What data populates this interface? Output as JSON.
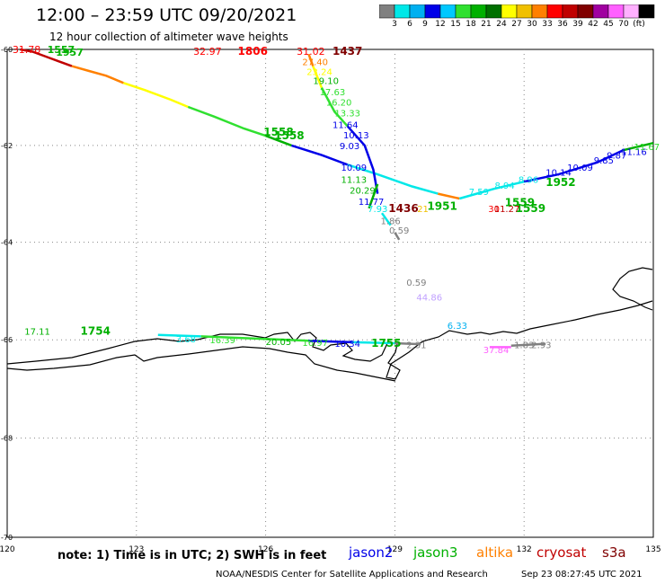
{
  "header": {
    "title": "12:00 – 23:59 UTC 09/20/2021",
    "subtitle": "12 hour collection of altimeter wave heights"
  },
  "colorbar": {
    "colors": [
      "#808080",
      "#00e8e8",
      "#00b0f0",
      "#0000e8",
      "#00c8ff",
      "#30e030",
      "#00b000",
      "#007000",
      "#ffff00",
      "#f0c000",
      "#ff8000",
      "#ff0000",
      "#c00000",
      "#800000",
      "#a000a0",
      "#ff60ff",
      "#ffb0ff",
      "#000000"
    ],
    "labels": [
      "3",
      "6",
      "9",
      "12",
      "15",
      "18",
      "21",
      "24",
      "27",
      "30",
      "33",
      "36",
      "39",
      "42",
      "45",
      "70",
      "(ft)"
    ]
  },
  "axes": {
    "lat_labels": [
      "-60",
      "-62",
      "-64",
      "-66",
      "-68",
      "-70"
    ],
    "lon_labels": [
      "120",
      "123",
      "126",
      "129",
      "132",
      "135"
    ]
  },
  "tracks": [
    {
      "color": "#c00000",
      "points": [
        [
          120.3,
          -60.0
        ],
        [
          120.6,
          -60.05
        ],
        [
          120.9,
          -60.15
        ],
        [
          121.2,
          -60.25
        ],
        [
          121.5,
          -60.35
        ]
      ]
    },
    {
      "color": "#ff8000",
      "points": [
        [
          121.5,
          -60.35
        ],
        [
          121.9,
          -60.45
        ],
        [
          122.3,
          -60.55
        ],
        [
          122.7,
          -60.7
        ]
      ]
    },
    {
      "color": "#ffff00",
      "points": [
        [
          122.7,
          -60.7
        ],
        [
          123.2,
          -60.85
        ],
        [
          123.8,
          -61.05
        ],
        [
          124.2,
          -61.2
        ]
      ]
    },
    {
      "color": "#30e030",
      "points": [
        [
          124.2,
          -61.2
        ],
        [
          124.8,
          -61.4
        ],
        [
          125.5,
          -61.65
        ],
        [
          126.0,
          -61.8
        ]
      ]
    },
    {
      "color": "#00b000",
      "points": [
        [
          126.0,
          -61.8
        ],
        [
          126.6,
          -62.0
        ]
      ]
    },
    {
      "color": "#0000e8",
      "points": [
        [
          126.6,
          -62.0
        ],
        [
          127.3,
          -62.2
        ],
        [
          127.9,
          -62.4
        ]
      ]
    },
    {
      "color": "#00e8e8",
      "points": [
        [
          127.9,
          -62.4
        ],
        [
          128.6,
          -62.6
        ],
        [
          129.4,
          -62.85
        ],
        [
          130.0,
          -63.0
        ]
      ]
    },
    {
      "color": "#ff8000",
      "points": [
        [
          130.0,
          -63.0
        ],
        [
          130.5,
          -63.1
        ]
      ]
    },
    {
      "color": "#00e8e8",
      "points": [
        [
          130.5,
          -63.1
        ],
        [
          131.3,
          -62.9
        ],
        [
          132.0,
          -62.75
        ]
      ]
    },
    {
      "color": "#0000e8",
      "points": [
        [
          132.0,
          -62.75
        ],
        [
          132.8,
          -62.6
        ],
        [
          133.7,
          -62.35
        ],
        [
          134.3,
          -62.1
        ]
      ]
    },
    {
      "color": "#00b000",
      "points": [
        [
          134.3,
          -62.1
        ],
        [
          135.0,
          -61.95
        ]
      ]
    },
    {
      "color": "#ff8000",
      "points": [
        [
          127.0,
          -60.1
        ],
        [
          127.1,
          -60.35
        ]
      ]
    },
    {
      "color": "#ffff00",
      "points": [
        [
          127.1,
          -60.35
        ],
        [
          127.3,
          -60.8
        ]
      ]
    },
    {
      "color": "#30e030",
      "points": [
        [
          127.3,
          -60.8
        ],
        [
          127.6,
          -61.3
        ],
        [
          127.9,
          -61.6
        ]
      ]
    },
    {
      "color": "#0000e8",
      "points": [
        [
          127.9,
          -61.6
        ],
        [
          128.3,
          -62.0
        ],
        [
          128.5,
          -62.5
        ],
        [
          128.6,
          -63.0
        ]
      ]
    },
    {
      "color": "#00b000",
      "points": [
        [
          128.6,
          -62.8
        ],
        [
          128.4,
          -63.3
        ]
      ]
    },
    {
      "color": "#00e8e8",
      "points": [
        [
          128.7,
          -63.4
        ],
        [
          128.9,
          -63.65
        ]
      ]
    },
    {
      "color": "#808080",
      "points": [
        [
          129.0,
          -63.8
        ],
        [
          129.1,
          -63.95
        ]
      ]
    },
    {
      "color": "#00e8e8",
      "points": [
        [
          123.5,
          -65.9
        ],
        [
          124.5,
          -65.93
        ]
      ]
    },
    {
      "color": "#30e030",
      "points": [
        [
          124.5,
          -65.93
        ],
        [
          126.5,
          -66.0
        ],
        [
          127.0,
          -66.02
        ]
      ]
    },
    {
      "color": "#0000e8",
      "points": [
        [
          127.0,
          -66.02
        ],
        [
          128.0,
          -66.05
        ]
      ]
    },
    {
      "color": "#00e8e8",
      "points": [
        [
          128.0,
          -66.05
        ],
        [
          129.0,
          -66.07
        ]
      ]
    },
    {
      "color": "#808080",
      "points": [
        [
          129.0,
          -66.07
        ],
        [
          129.6,
          -66.09
        ]
      ]
    },
    {
      "color": "#ff60ff",
      "points": [
        [
          131.2,
          -66.15
        ],
        [
          131.7,
          -66.15
        ]
      ]
    },
    {
      "color": "#808080",
      "points": [
        [
          131.7,
          -66.12
        ],
        [
          132.5,
          -66.08
        ]
      ]
    }
  ],
  "labels": [
    {
      "text": "31.78",
      "lon": 120.45,
      "lat": -60.0,
      "color": "#ff0000",
      "size": 11
    },
    {
      "text": "1557",
      "lon": 121.25,
      "lat": -60.0,
      "color": "#00b000",
      "size": 11,
      "bold": true
    },
    {
      "text": "1957",
      "lon": 121.45,
      "lat": -60.06,
      "color": "#00b000",
      "size": 11,
      "bold": true
    },
    {
      "text": "32.97",
      "lon": 124.65,
      "lat": -60.04,
      "color": "#ff0000",
      "size": 11
    },
    {
      "text": "1806",
      "lon": 125.7,
      "lat": -60.04,
      "color": "#ff0000",
      "size": 12,
      "bold": true
    },
    {
      "text": "31.02",
      "lon": 127.05,
      "lat": -60.04,
      "color": "#ff0000",
      "size": 11
    },
    {
      "text": "1437",
      "lon": 127.9,
      "lat": -60.04,
      "color": "#800000",
      "size": 12,
      "bold": true
    },
    {
      "text": "27.40",
      "lon": 127.15,
      "lat": -60.25,
      "color": "#ff8000",
      "size": 10
    },
    {
      "text": "23.24",
      "lon": 127.25,
      "lat": -60.46,
      "color": "#ffff00",
      "size": 10
    },
    {
      "text": "19.10",
      "lon": 127.4,
      "lat": -60.65,
      "color": "#00b000",
      "size": 10
    },
    {
      "text": "17.63",
      "lon": 127.55,
      "lat": -60.88,
      "color": "#30e030",
      "size": 10
    },
    {
      "text": "16.20",
      "lon": 127.7,
      "lat": -61.1,
      "color": "#30e030",
      "size": 10
    },
    {
      "text": "13.33",
      "lon": 127.9,
      "lat": -61.32,
      "color": "#30e030",
      "size": 10
    },
    {
      "text": "11.64",
      "lon": 127.85,
      "lat": -61.56,
      "color": "#0000e8",
      "size": 10
    },
    {
      "text": "10.13",
      "lon": 128.1,
      "lat": -61.78,
      "color": "#0000e8",
      "size": 10
    },
    {
      "text": "9.03",
      "lon": 127.95,
      "lat": -62.0,
      "color": "#0000e8",
      "size": 10
    },
    {
      "text": "10.09",
      "lon": 128.05,
      "lat": -62.45,
      "color": "#0000e8",
      "size": 10
    },
    {
      "text": "11.13",
      "lon": 128.05,
      "lat": -62.7,
      "color": "#00b000",
      "size": 10
    },
    {
      "text": "20.29",
      "lon": 128.25,
      "lat": -62.92,
      "color": "#00b000",
      "size": 10
    },
    {
      "text": "11.77",
      "lon": 128.45,
      "lat": -63.16,
      "color": "#0000e8",
      "size": 10
    },
    {
      "text": "7.93",
      "lon": 128.6,
      "lat": -63.3,
      "color": "#00e8e8",
      "size": 10
    },
    {
      "text": "1436",
      "lon": 129.2,
      "lat": -63.3,
      "color": "#800000",
      "size": 12,
      "bold": true
    },
    {
      "text": "21",
      "lon": 129.65,
      "lat": -63.3,
      "color": "#f0c000",
      "size": 10
    },
    {
      "text": "1951",
      "lon": 130.1,
      "lat": -63.26,
      "color": "#00b000",
      "size": 12,
      "bold": true
    },
    {
      "text": "1.86",
      "lon": 128.9,
      "lat": -63.55,
      "color": "#808080",
      "size": 10
    },
    {
      "text": "0.59",
      "lon": 129.1,
      "lat": -63.75,
      "color": "#808080",
      "size": 10
    },
    {
      "text": "1559",
      "lon": 131.9,
      "lat": -63.18,
      "color": "#00b000",
      "size": 12,
      "bold": true
    },
    {
      "text": "1559",
      "lon": 132.15,
      "lat": -63.3,
      "color": "#00b000",
      "size": 12,
      "bold": true
    },
    {
      "text": "30",
      "lon": 131.3,
      "lat": -63.3,
      "color": "#ff0000",
      "size": 10
    },
    {
      "text": "11.27",
      "lon": 131.6,
      "lat": -63.3,
      "color": "#c00000",
      "size": 10
    },
    {
      "text": "7.59",
      "lon": 130.95,
      "lat": -62.95,
      "color": "#00e8e8",
      "size": 10
    },
    {
      "text": "8.94",
      "lon": 131.55,
      "lat": -62.82,
      "color": "#00e8e8",
      "size": 10
    },
    {
      "text": "8.96",
      "lon": 132.1,
      "lat": -62.7,
      "color": "#00e8e8",
      "size": 10
    },
    {
      "text": "10.14",
      "lon": 132.8,
      "lat": -62.55,
      "color": "#0000e8",
      "size": 10
    },
    {
      "text": "1952",
      "lon": 132.85,
      "lat": -62.77,
      "color": "#00b000",
      "size": 12,
      "bold": true
    },
    {
      "text": "10.09",
      "lon": 133.3,
      "lat": -62.45,
      "color": "#0000e8",
      "size": 10
    },
    {
      "text": "9.85",
      "lon": 133.85,
      "lat": -62.3,
      "color": "#0000e8",
      "size": 10
    },
    {
      "text": "9.87",
      "lon": 134.15,
      "lat": -62.2,
      "color": "#0000e8",
      "size": 10
    },
    {
      "text": "11.16",
      "lon": 134.55,
      "lat": -62.12,
      "color": "#0000e8",
      "size": 10
    },
    {
      "text": "11.67",
      "lon": 134.85,
      "lat": -62.02,
      "color": "#30e030",
      "size": 10
    },
    {
      "text": "1558",
      "lon": 126.3,
      "lat": -61.72,
      "color": "#00b000",
      "size": 12,
      "bold": true
    },
    {
      "text": "1558",
      "lon": 126.55,
      "lat": -61.8,
      "color": "#00b000",
      "size": 12,
      "bold": true
    },
    {
      "text": "0.59",
      "lon": 129.5,
      "lat": -64.82,
      "color": "#808080",
      "size": 10
    },
    {
      "text": "44.86",
      "lon": 129.8,
      "lat": -65.12,
      "color": "#c0a0ff",
      "size": 10
    },
    {
      "text": "6.33",
      "lon": 130.45,
      "lat": -65.7,
      "color": "#00b0f0",
      "size": 10
    },
    {
      "text": "17.11",
      "lon": 120.7,
      "lat": -65.82,
      "color": "#00b000",
      "size": 10
    },
    {
      "text": "1754",
      "lon": 122.05,
      "lat": -65.82,
      "color": "#00b000",
      "size": 12,
      "bold": true
    },
    {
      "text": "3.68",
      "lon": 124.15,
      "lat": -65.98,
      "color": "#00e8e8",
      "size": 10
    },
    {
      "text": "16.39",
      "lon": 125.0,
      "lat": -66.0,
      "color": "#30e030",
      "size": 10
    },
    {
      "text": "20.05",
      "lon": 126.3,
      "lat": -66.03,
      "color": "#00b000",
      "size": 10
    },
    {
      "text": "16.97",
      "lon": 127.15,
      "lat": -66.05,
      "color": "#30e030",
      "size": 10
    },
    {
      "text": "10.34",
      "lon": 127.9,
      "lat": -66.07,
      "color": "#0000e8",
      "size": 10
    },
    {
      "text": "1755",
      "lon": 128.8,
      "lat": -66.07,
      "color": "#00b000",
      "size": 12,
      "bold": true
    },
    {
      "text": "2.31",
      "lon": 129.5,
      "lat": -66.1,
      "color": "#808080",
      "size": 10
    },
    {
      "text": "37.84",
      "lon": 131.35,
      "lat": -66.2,
      "color": "#ff60ff",
      "size": 10
    },
    {
      "text": "1.83",
      "lon": 132.0,
      "lat": -66.1,
      "color": "#808080",
      "size": 10
    },
    {
      "text": "2.93",
      "lon": 132.4,
      "lat": -66.1,
      "color": "#808080",
      "size": 10
    }
  ],
  "note": {
    "text": "note:  1) Time is in UTC;  2) SWH is in feet"
  },
  "satellites": [
    {
      "name": "jason2",
      "color": "#0000e8"
    },
    {
      "name": "jason3",
      "color": "#00b000"
    },
    {
      "name": "altika",
      "color": "#ff8000"
    },
    {
      "name": "cryosat",
      "color": "#c00000"
    },
    {
      "name": "s3a",
      "color": "#800000"
    }
  ],
  "footer": {
    "credit": "NOAA/NESDIS Center for Satellite Applications and Research",
    "timestamp": "Sep 23 08:27:45 UTC 2021"
  }
}
